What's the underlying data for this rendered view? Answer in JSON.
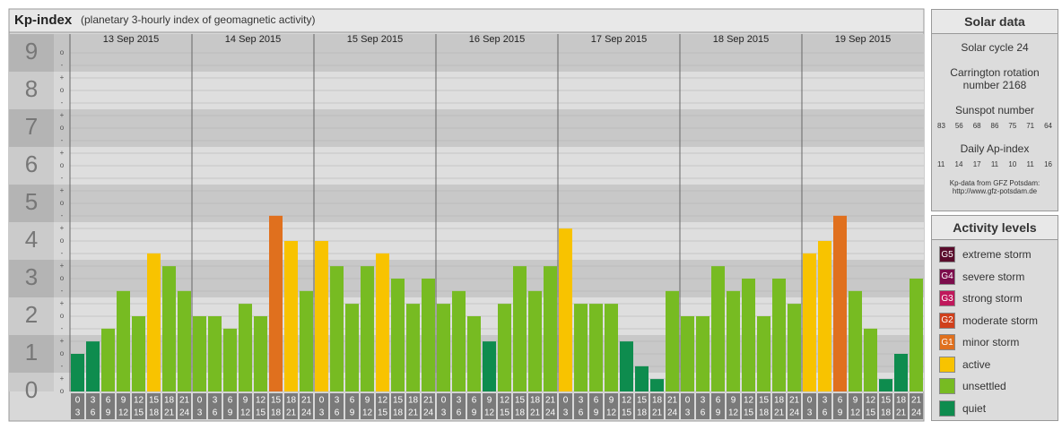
{
  "chart_data": {
    "type": "bar",
    "title": "Kp-index",
    "subtitle": "(planetary 3-hourly index of geomagnetic activity)",
    "days": [
      "13 Sep 2015",
      "14 Sep 2015",
      "15 Sep 2015",
      "16 Sep 2015",
      "17 Sep 2015",
      "18 Sep 2015",
      "19 Sep 2015"
    ],
    "slots": [
      [
        0,
        3
      ],
      [
        3,
        6
      ],
      [
        6,
        9
      ],
      [
        9,
        12
      ],
      [
        12,
        15
      ],
      [
        15,
        18
      ],
      [
        18,
        21
      ],
      [
        21,
        24
      ]
    ],
    "values": [
      1,
      1.33,
      1.67,
      2.67,
      2,
      3.67,
      3.33,
      2.67,
      2,
      2,
      1.67,
      2.33,
      2,
      4.67,
      4,
      2.67,
      4,
      3.33,
      2.33,
      3.33,
      3.67,
      3,
      2.33,
      3,
      2.33,
      2.67,
      2,
      1.33,
      2.33,
      3.33,
      2.67,
      3.33,
      4.33,
      2.33,
      2.33,
      2.33,
      1.33,
      0.67,
      0.33,
      2.67,
      2,
      2,
      3.33,
      2.67,
      3,
      2,
      3,
      2.33,
      3.67,
      4,
      4.67,
      2.67,
      1.67,
      0.33,
      1,
      3
    ],
    "colors": [
      "#0e8c4e",
      "#0e8c4e",
      "#77bb22",
      "#77bb22",
      "#77bb22",
      "#f8c300",
      "#77bb22",
      "#77bb22",
      "#77bb22",
      "#77bb22",
      "#77bb22",
      "#77bb22",
      "#77bb22",
      "#e0701e",
      "#f8c300",
      "#77bb22",
      "#f8c300",
      "#77bb22",
      "#77bb22",
      "#77bb22",
      "#f8c300",
      "#77bb22",
      "#77bb22",
      "#77bb22",
      "#77bb22",
      "#77bb22",
      "#77bb22",
      "#0e8c4e",
      "#77bb22",
      "#77bb22",
      "#77bb22",
      "#77bb22",
      "#f8c300",
      "#77bb22",
      "#77bb22",
      "#77bb22",
      "#0e8c4e",
      "#0e8c4e",
      "#0e8c4e",
      "#77bb22",
      "#77bb22",
      "#77bb22",
      "#77bb22",
      "#77bb22",
      "#77bb22",
      "#77bb22",
      "#77bb22",
      "#77bb22",
      "#f8c300",
      "#f8c300",
      "#e0701e",
      "#77bb22",
      "#77bb22",
      "#0e8c4e",
      "#0e8c4e",
      "#77bb22"
    ],
    "ylim": [
      0,
      9.5
    ],
    "yticks": [
      0,
      1,
      2,
      3,
      4,
      5,
      6,
      7,
      8,
      9
    ],
    "thirds": [
      "-",
      "o",
      "+"
    ],
    "grid": true
  },
  "solar_data": {
    "title": "Solar data",
    "cycle": "Solar cycle 24",
    "carrington": "Carrington rotation number 2168",
    "sunspot_title": "Sunspot number",
    "sunspot": [
      83,
      56,
      68,
      86,
      75,
      71,
      64
    ],
    "ap_title": "Daily Ap-index",
    "ap": [
      11,
      14,
      17,
      11,
      10,
      11,
      16
    ],
    "source": "Kp-data from GFZ Potsdam:",
    "url": "http://www.gfz-potsdam.de"
  },
  "activity_levels": {
    "title": "Activity levels",
    "items": [
      {
        "code": "G5",
        "label": "extreme storm",
        "color": "#5a0c2c"
      },
      {
        "code": "G4",
        "label": "severe storm",
        "color": "#7c0c4c"
      },
      {
        "code": "G3",
        "label": "strong storm",
        "color": "#c0185c"
      },
      {
        "code": "G2",
        "label": "moderate storm",
        "color": "#d0401c"
      },
      {
        "code": "G1",
        "label": "minor storm",
        "color": "#e0701e"
      },
      {
        "label": "active",
        "color": "#f8c300"
      },
      {
        "label": "unsettled",
        "color": "#77bb22"
      },
      {
        "label": "quiet",
        "color": "#0e8c4e"
      }
    ]
  }
}
